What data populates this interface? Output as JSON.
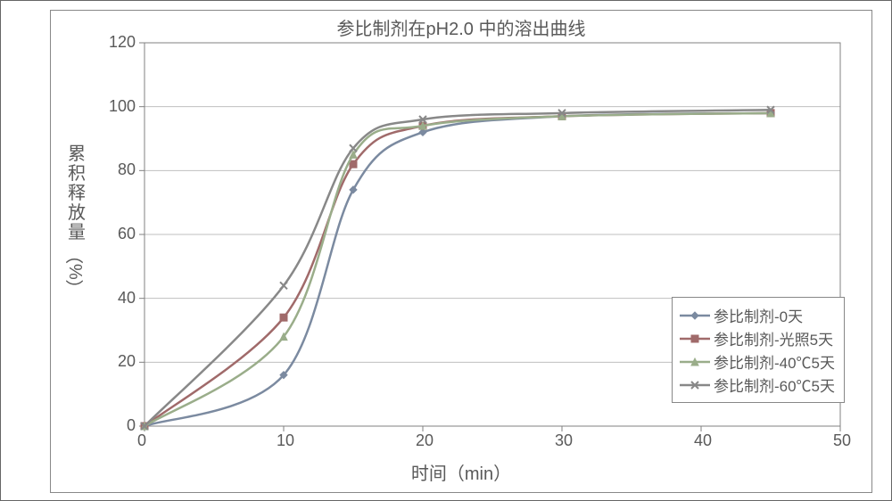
{
  "chart": {
    "type": "line",
    "title": "参比制剂在pH2.0 中的溶出曲线",
    "title_fontsize": 20,
    "xlabel": "时间（min）",
    "ylabel_vertical": "累积释放量",
    "ylabel_pct": "（%）",
    "label_fontsize": 20,
    "tick_fontsize": 18,
    "xlim": [
      0,
      50
    ],
    "ylim": [
      0,
      120
    ],
    "xtick_step": 10,
    "ytick_step": 20,
    "xticks": [
      0,
      10,
      20,
      30,
      40,
      50
    ],
    "yticks": [
      0,
      20,
      40,
      60,
      80,
      100,
      120
    ],
    "background_color": "#ffffff",
    "grid_color": "#bfbfbf",
    "grid_on": true,
    "axis_color": "#808080",
    "border_color": "#888888",
    "text_color": "#595959",
    "line_width": 2.5,
    "marker_size": 8,
    "series": [
      {
        "name": "参比制剂-0天",
        "color": "#7b8aa0",
        "marker": "diamond",
        "x": [
          0,
          10,
          15,
          20,
          30,
          45
        ],
        "y": [
          0,
          16,
          74,
          92,
          97,
          98
        ]
      },
      {
        "name": "参比制剂-光照5天",
        "color": "#a06a6a",
        "marker": "square",
        "x": [
          0,
          10,
          15,
          20,
          30,
          45
        ],
        "y": [
          0,
          34,
          82,
          94,
          97,
          98
        ]
      },
      {
        "name": "参比制剂-40℃5天",
        "color": "#9aad8a",
        "marker": "triangle",
        "x": [
          0,
          10,
          15,
          20,
          30,
          45
        ],
        "y": [
          0,
          28,
          85,
          94,
          97,
          98
        ]
      },
      {
        "name": "参比制剂-60℃5天",
        "color": "#888888",
        "marker": "x",
        "x": [
          0,
          10,
          15,
          20,
          30,
          45
        ],
        "y": [
          0,
          44,
          87,
          96,
          98,
          99
        ]
      }
    ],
    "legend": {
      "position": "lower-right",
      "border_color": "#888888",
      "fontsize": 17
    }
  }
}
